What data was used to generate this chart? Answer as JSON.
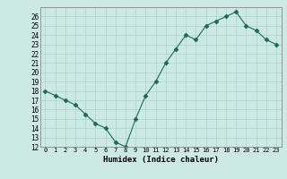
{
  "x": [
    0,
    1,
    2,
    3,
    4,
    5,
    6,
    7,
    8,
    9,
    10,
    11,
    12,
    13,
    14,
    15,
    16,
    17,
    18,
    19,
    20,
    21,
    22,
    23
  ],
  "y": [
    18,
    17.5,
    17,
    16.5,
    15.5,
    14.5,
    14,
    12.5,
    12,
    15,
    17.5,
    19,
    21,
    22.5,
    24,
    23.5,
    25,
    25.5,
    26,
    26.5,
    25,
    24.5,
    23.5,
    23
  ],
  "ylim": [
    12,
    27
  ],
  "yticks": [
    12,
    13,
    14,
    15,
    16,
    17,
    18,
    19,
    20,
    21,
    22,
    23,
    24,
    25,
    26
  ],
  "xtick_labels": [
    "0",
    "1",
    "2",
    "3",
    "4",
    "5",
    "6",
    "7",
    "8",
    "9",
    "10",
    "11",
    "12",
    "13",
    "14",
    "15",
    "16",
    "17",
    "18",
    "19",
    "20",
    "21",
    "22",
    "23"
  ],
  "xlabel": "Humidex (Indice chaleur)",
  "line_color": "#1a6b5a",
  "marker": "D",
  "marker_size": 2.5,
  "bg_color": "#cce9e4",
  "grid_color": "#aad4cc",
  "spine_color": "#888888"
}
